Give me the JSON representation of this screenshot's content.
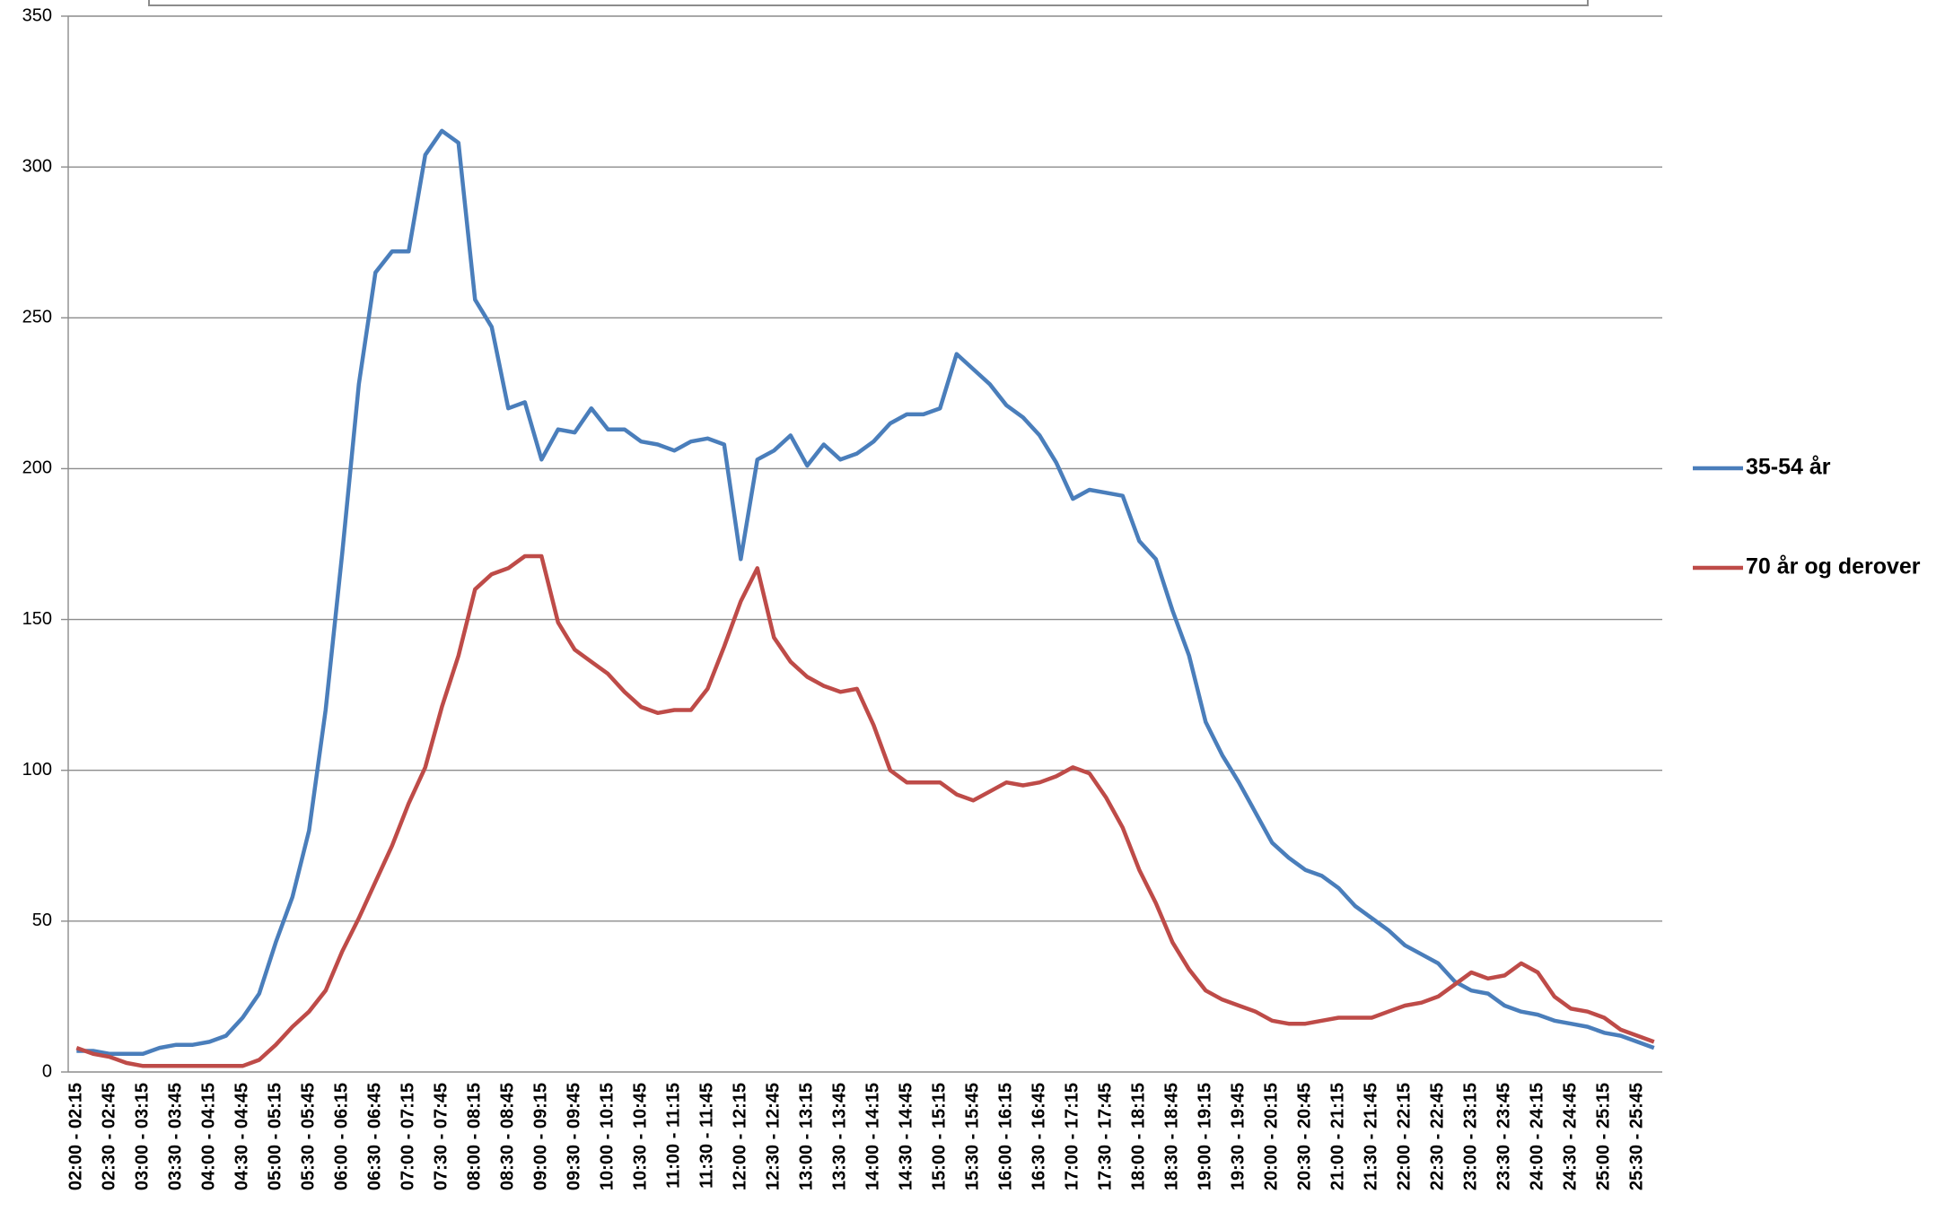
{
  "chart_data": {
    "type": "line",
    "categories": [
      "02:00 - 02:15",
      null,
      "02:30 - 02:45",
      null,
      "03:00 - 03:15",
      null,
      "03:30 - 03:45",
      null,
      "04:00 - 04:15",
      null,
      "04:30 - 04:45",
      null,
      "05:00 - 05:15",
      null,
      "05:30 - 05:45",
      null,
      "06:00 - 06:15",
      null,
      "06:30 - 06:45",
      null,
      "07:00 - 07:15",
      null,
      "07:30 - 07:45",
      null,
      "08:00 - 08:15",
      null,
      "08:30 - 08:45",
      null,
      "09:00 - 09:15",
      null,
      "09:30 - 09:45",
      null,
      "10:00 - 10:15",
      null,
      "10:30 - 10:45",
      null,
      "11:00 - 11:15",
      null,
      "11:30 - 11:45",
      null,
      "12:00 - 12:15",
      null,
      "12:30 - 12:45",
      null,
      "13:00 - 13:15",
      null,
      "13:30 - 13:45",
      null,
      "14:00 - 14:15",
      null,
      "14:30 - 14:45",
      null,
      "15:00 - 15:15",
      null,
      "15:30 - 15:45",
      null,
      "16:00 - 16:15",
      null,
      "16:30 - 16:45",
      null,
      "17:00 - 17:15",
      null,
      "17:30 - 17:45",
      null,
      "18:00 - 18:15",
      null,
      "18:30 - 18:45",
      null,
      "19:00 - 19:15",
      null,
      "19:30 - 19:45",
      null,
      "20:00 - 20:15",
      null,
      "20:30 - 20:45",
      null,
      "21:00 - 21:15",
      null,
      "21:30 - 21:45",
      null,
      "22:00 - 22:15",
      null,
      "22:30 - 22:45",
      null,
      "23:00 - 23:15",
      null,
      "23:30 - 23:45",
      null,
      "24:00 - 24:15",
      null,
      "24:30 - 24:45",
      null,
      "25:00 - 25:15",
      null,
      "25:30 - 25:45",
      null
    ],
    "series": [
      {
        "name": "35-54 år",
        "color": "#4a7ebb",
        "values": [
          7,
          7,
          6,
          6,
          6,
          8,
          9,
          9,
          10,
          12,
          18,
          26,
          43,
          58,
          80,
          120,
          172,
          228,
          265,
          272,
          272,
          304,
          312,
          308,
          256,
          247,
          220,
          222,
          203,
          213,
          212,
          220,
          213,
          213,
          209,
          208,
          206,
          209,
          210,
          208,
          170,
          203,
          206,
          211,
          201,
          208,
          203,
          205,
          209,
          215,
          218,
          218,
          220,
          238,
          233,
          228,
          221,
          217,
          211,
          202,
          190,
          193,
          192,
          191,
          176,
          170,
          153,
          138,
          116,
          105,
          96,
          86,
          76,
          71,
          67,
          65,
          61,
          55,
          51,
          47,
          42,
          39,
          36,
          30,
          27,
          26,
          22,
          20,
          19,
          17,
          16,
          15,
          13,
          12,
          10,
          8
        ]
      },
      {
        "name": "70 år og derover",
        "color": "#be4b48",
        "values": [
          8,
          6,
          5,
          3,
          2,
          2,
          2,
          2,
          2,
          2,
          2,
          4,
          9,
          15,
          20,
          27,
          40,
          51,
          63,
          75,
          89,
          101,
          121,
          138,
          160,
          165,
          167,
          171,
          171,
          149,
          140,
          136,
          132,
          126,
          121,
          119,
          120,
          120,
          127,
          141,
          156,
          167,
          144,
          136,
          131,
          128,
          126,
          127,
          115,
          100,
          96,
          96,
          96,
          92,
          90,
          93,
          96,
          95,
          96,
          98,
          101,
          99,
          91,
          81,
          67,
          56,
          43,
          34,
          27,
          24,
          22,
          20,
          17,
          16,
          16,
          17,
          18,
          18,
          18,
          20,
          22,
          23,
          25,
          29,
          33,
          31,
          32,
          36,
          33,
          25,
          21,
          20,
          18,
          14,
          12,
          10
        ]
      }
    ],
    "ylim": [
      0,
      350
    ],
    "yticks": [
      0,
      50,
      100,
      150,
      200,
      250,
      300,
      350
    ],
    "grid": true,
    "legend": "right"
  }
}
